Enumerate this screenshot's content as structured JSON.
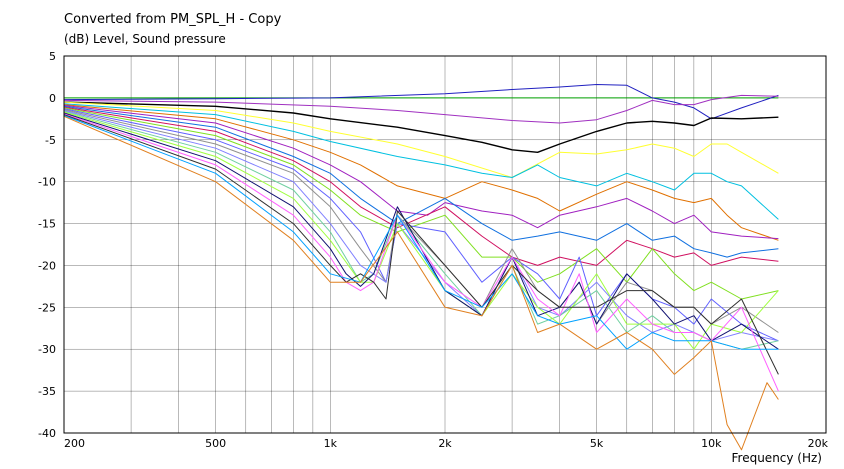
{
  "chart_data": {
    "type": "line",
    "title": "Converted from PM_SPL_H - Copy",
    "ylabel": "(dB)  Level, Sound pressure",
    "xlabel": "Frequency  (Hz)",
    "xscale": "log",
    "xlim": [
      200,
      20000
    ],
    "ylim": [
      -40,
      5
    ],
    "grid": true,
    "xticks": [
      200,
      500,
      1000,
      2000,
      5000,
      10000,
      20000
    ],
    "xtick_labels": [
      "200",
      "500",
      "1k",
      "2k",
      "5k",
      "10k",
      "20k"
    ],
    "yticks": [
      5,
      0,
      -5,
      -10,
      -15,
      -20,
      -25,
      -30,
      -35,
      -40
    ],
    "ytick_labels": [
      "5",
      "0",
      "-5",
      "-10",
      "-15",
      "-20",
      "-25",
      "-30",
      "-35",
      "-40"
    ],
    "series": [
      {
        "color": "#00a000",
        "x": [
          200,
          15000
        ],
        "y": [
          0,
          0
        ]
      },
      {
        "color": "#2020c0",
        "x": [
          200,
          500,
          1000,
          2000,
          3000,
          4000,
          5000,
          6000,
          7000,
          8000,
          9000,
          10000,
          12000,
          15000
        ],
        "y": [
          -0.2,
          -0.1,
          0,
          0.5,
          1,
          1.3,
          1.6,
          1.5,
          0,
          -0.5,
          -1.2,
          -2.5,
          -1.2,
          0.3
        ]
      },
      {
        "color": "#a030c0",
        "x": [
          200,
          500,
          1000,
          1500,
          2000,
          3000,
          4000,
          5000,
          6000,
          7000,
          8000,
          9000,
          10000,
          12000,
          15000
        ],
        "y": [
          -0.3,
          -0.5,
          -1,
          -1.5,
          -2,
          -2.7,
          -3,
          -2.6,
          -1.5,
          -0.3,
          -0.8,
          -0.8,
          -0.2,
          0.3,
          0.2
        ]
      },
      {
        "color": "#000000",
        "x": [
          200,
          500,
          800,
          1000,
          1500,
          2000,
          2500,
          3000,
          3500,
          4000,
          5000,
          6000,
          7000,
          8000,
          9000,
          10000,
          12000,
          15000
        ],
        "y": [
          -0.5,
          -1,
          -1.8,
          -2.5,
          -3.5,
          -4.5,
          -5.3,
          -6.2,
          -6.5,
          -5.5,
          -4,
          -3,
          -2.8,
          -3,
          -3.3,
          -2.4,
          -2.5,
          -2.3
        ]
      },
      {
        "color": "#ffff30",
        "x": [
          200,
          500,
          800,
          1000,
          1500,
          2000,
          3000,
          4000,
          5000,
          6000,
          7000,
          8000,
          9000,
          10000,
          11000,
          12000,
          15000
        ],
        "y": [
          -0.5,
          -1.5,
          -3,
          -4,
          -5.5,
          -7,
          -9.5,
          -6.5,
          -6.7,
          -6.2,
          -5.5,
          -6,
          -7,
          -5.5,
          -5.5,
          -6.5,
          -9
        ]
      },
      {
        "color": "#00c0e0",
        "x": [
          200,
          500,
          800,
          1000,
          1500,
          2000,
          2500,
          3000,
          3500,
          4000,
          5000,
          6000,
          7000,
          8000,
          9000,
          10000,
          11000,
          12000,
          15000
        ],
        "y": [
          -0.7,
          -2,
          -4,
          -5.2,
          -7,
          -8,
          -9,
          -9.5,
          -8,
          -9.5,
          -10.5,
          -9,
          -10,
          -11,
          -9,
          -9,
          -10,
          -10.5,
          -14.5
        ]
      },
      {
        "color": "#e07000",
        "x": [
          200,
          500,
          800,
          1000,
          1200,
          1500,
          2000,
          2500,
          3000,
          3500,
          4000,
          5000,
          6000,
          7000,
          8000,
          9000,
          10000,
          11000,
          12000,
          15000
        ],
        "y": [
          -0.8,
          -2.5,
          -5,
          -6.5,
          -8,
          -10.5,
          -12,
          -10,
          -11,
          -12,
          -13.5,
          -11.5,
          -10,
          -11,
          -12,
          -12.5,
          -12,
          -14,
          -15.5,
          -17
        ]
      },
      {
        "color": "#a020c0",
        "x": [
          200,
          500,
          800,
          1000,
          1200,
          1500,
          1800,
          2000,
          2500,
          3000,
          3500,
          4000,
          5000,
          6000,
          7000,
          8000,
          9000,
          10000,
          12000,
          15000
        ],
        "y": [
          -0.9,
          -3,
          -6,
          -8,
          -10,
          -13.5,
          -14,
          -12.5,
          -13.5,
          -14,
          -15.5,
          -14,
          -13,
          -12,
          -13.5,
          -15,
          -14,
          -16,
          -16.5,
          -16.8
        ]
      },
      {
        "color": "#1070e0",
        "x": [
          200,
          500,
          800,
          1000,
          1200,
          1500,
          2000,
          2500,
          3000,
          3500,
          4000,
          5000,
          6000,
          7000,
          8000,
          9000,
          10000,
          11000,
          12000,
          15000
        ],
        "y": [
          -1,
          -3.5,
          -7,
          -9,
          -12,
          -15,
          -12,
          -15,
          -17,
          -16.5,
          -16,
          -17,
          -15,
          -17,
          -16.5,
          -18,
          -18.5,
          -19,
          -18.5,
          -18
        ]
      },
      {
        "color": "#d01060",
        "x": [
          200,
          500,
          800,
          1000,
          1200,
          1500,
          2000,
          2500,
          3000,
          3500,
          4000,
          5000,
          6000,
          7000,
          8000,
          9000,
          10000,
          12000,
          15000
        ],
        "y": [
          -1.1,
          -4,
          -7.5,
          -10,
          -13,
          -15.5,
          -13,
          -16.5,
          -19,
          -20,
          -19,
          -20,
          -17,
          -18,
          -19,
          -18.5,
          -20,
          -19,
          -19.5
        ]
      },
      {
        "color": "#80e020",
        "x": [
          200,
          500,
          800,
          1000,
          1200,
          1500,
          2000,
          2500,
          3000,
          3500,
          4000,
          5000,
          6000,
          7000,
          8000,
          9000,
          10000,
          12000,
          15000
        ],
        "y": [
          -1.2,
          -4.5,
          -8,
          -11,
          -14,
          -16,
          -14,
          -19,
          -19,
          -22,
          -21,
          -18,
          -22,
          -18,
          -21,
          -23,
          -22,
          -24,
          -23
        ]
      },
      {
        "color": "#6060ff",
        "x": [
          200,
          500,
          800,
          1000,
          1200,
          1400,
          1500,
          2000,
          2500,
          3000,
          3500,
          4000,
          4500,
          5000,
          6000,
          7000,
          8000,
          9000,
          10000,
          12000,
          15000
        ],
        "y": [
          -1.3,
          -5,
          -8.5,
          -12,
          -16,
          -22,
          -15,
          -16,
          -22,
          -19,
          -21,
          -24,
          -19,
          -26,
          -21,
          -24,
          -25,
          -27,
          -24,
          -27,
          -29
        ]
      },
      {
        "color": "#909090",
        "x": [
          200,
          500,
          800,
          1000,
          1200,
          1400,
          1500,
          2000,
          2500,
          3000,
          3500,
          4000,
          4500,
          5000,
          6000,
          7000,
          8000,
          9000,
          10000,
          12000,
          15000
        ],
        "y": [
          -1.4,
          -5.5,
          -9,
          -13,
          -18,
          -22,
          -14,
          -20,
          -25,
          -18,
          -23,
          -25,
          -22,
          -27,
          -22,
          -23,
          -25,
          -25,
          -27,
          -25,
          -28
        ]
      },
      {
        "color": "#8080ff",
        "x": [
          200,
          500,
          800,
          1000,
          1200,
          1400,
          1500,
          2000,
          2500,
          3000,
          3500,
          4000,
          5000,
          6000,
          7000,
          8000,
          9000,
          10000,
          12000,
          15000
        ],
        "y": [
          -1.5,
          -6,
          -10,
          -15,
          -20,
          -22,
          -15,
          -22,
          -26,
          -19,
          -25,
          -26,
          -22,
          -26,
          -28,
          -27,
          -28,
          -29,
          -28,
          -29
        ]
      },
      {
        "color": "#70d0a0",
        "x": [
          200,
          500,
          800,
          1000,
          1200,
          1300,
          1500,
          2000,
          2500,
          3000,
          3500,
          4000,
          5000,
          6000,
          7000,
          8000,
          9000,
          10000,
          12000,
          15000
        ],
        "y": [
          -1.6,
          -6.5,
          -11,
          -16,
          -22,
          -21,
          -14,
          -21,
          -26,
          -20,
          -27,
          -26,
          -23,
          -28,
          -26,
          -28,
          -28,
          -29,
          -30,
          -29
        ]
      },
      {
        "color": "#a0ff40",
        "x": [
          200,
          500,
          800,
          1000,
          1200,
          1300,
          1500,
          2000,
          2500,
          3000,
          3500,
          4000,
          5000,
          6000,
          7000,
          8000,
          9000,
          10000,
          12000,
          15000
        ],
        "y": [
          -1.7,
          -7,
          -12,
          -17,
          -22,
          -22,
          -15,
          -23,
          -26,
          -21,
          -25,
          -27,
          -21,
          -27,
          -27,
          -27,
          -30,
          -27,
          -28,
          -23
        ]
      },
      {
        "color": "#101070",
        "x": [
          200,
          500,
          800,
          1000,
          1100,
          1200,
          1300,
          1500,
          2000,
          2500,
          3000,
          3500,
          4000,
          4500,
          5000,
          6000,
          7000,
          8000,
          9000,
          10000,
          12000,
          15000
        ],
        "y": [
          -1.8,
          -7.5,
          -13,
          -18,
          -21,
          -22.5,
          -21,
          -13,
          -23,
          -26,
          -19,
          -26,
          -25,
          -22,
          -27,
          -21,
          -24,
          -27,
          -26,
          -29,
          -27,
          -30
        ]
      },
      {
        "color": "#ff60ff",
        "x": [
          200,
          500,
          800,
          1000,
          1100,
          1200,
          1300,
          1500,
          2000,
          2500,
          3000,
          3500,
          4000,
          4500,
          5000,
          6000,
          7000,
          8000,
          9000,
          10000,
          12000,
          15000
        ],
        "y": [
          -1.9,
          -8,
          -14,
          -19,
          -22,
          -23,
          -22,
          -14,
          -22,
          -25,
          -19,
          -24,
          -26,
          -21,
          -28,
          -24,
          -27,
          -28,
          -28,
          -29,
          -25,
          -35
        ]
      },
      {
        "color": "#303030",
        "x": [
          200,
          500,
          800,
          1000,
          1100,
          1200,
          1300,
          1400,
          1500,
          2000,
          2500,
          3000,
          3500,
          4000,
          5000,
          6000,
          7000,
          8000,
          9000,
          10000,
          12000,
          15000
        ],
        "y": [
          -2,
          -8.5,
          -15,
          -20,
          -22,
          -21,
          -22,
          -24,
          -13.5,
          -20,
          -25,
          -20,
          -23,
          -25,
          -25,
          -23,
          -23,
          -25,
          -25,
          -27,
          -24,
          -33
        ]
      },
      {
        "color": "#00a0ff",
        "x": [
          200,
          500,
          800,
          1000,
          1200,
          1500,
          2000,
          2500,
          3000,
          3500,
          4000,
          5000,
          6000,
          7000,
          8000,
          9000,
          10000,
          12000,
          15000
        ],
        "y": [
          -2.1,
          -9,
          -16,
          -21,
          -22,
          -14,
          -23,
          -25,
          -21,
          -26,
          -27,
          -26,
          -30,
          -28,
          -29,
          -29,
          -29,
          -30,
          -30
        ]
      },
      {
        "color": "#e08020",
        "x": [
          200,
          500,
          800,
          1000,
          1200,
          1500,
          2000,
          2500,
          3000,
          3500,
          4000,
          5000,
          6000,
          7000,
          8000,
          9000,
          10000,
          11000,
          12000,
          14000,
          15000
        ],
        "y": [
          -2.2,
          -10,
          -17,
          -22,
          -22,
          -16,
          -25,
          -26,
          -20,
          -28,
          -27,
          -30,
          -28,
          -30,
          -33,
          -31,
          -29,
          -39,
          -42,
          -34,
          -36
        ]
      }
    ]
  }
}
